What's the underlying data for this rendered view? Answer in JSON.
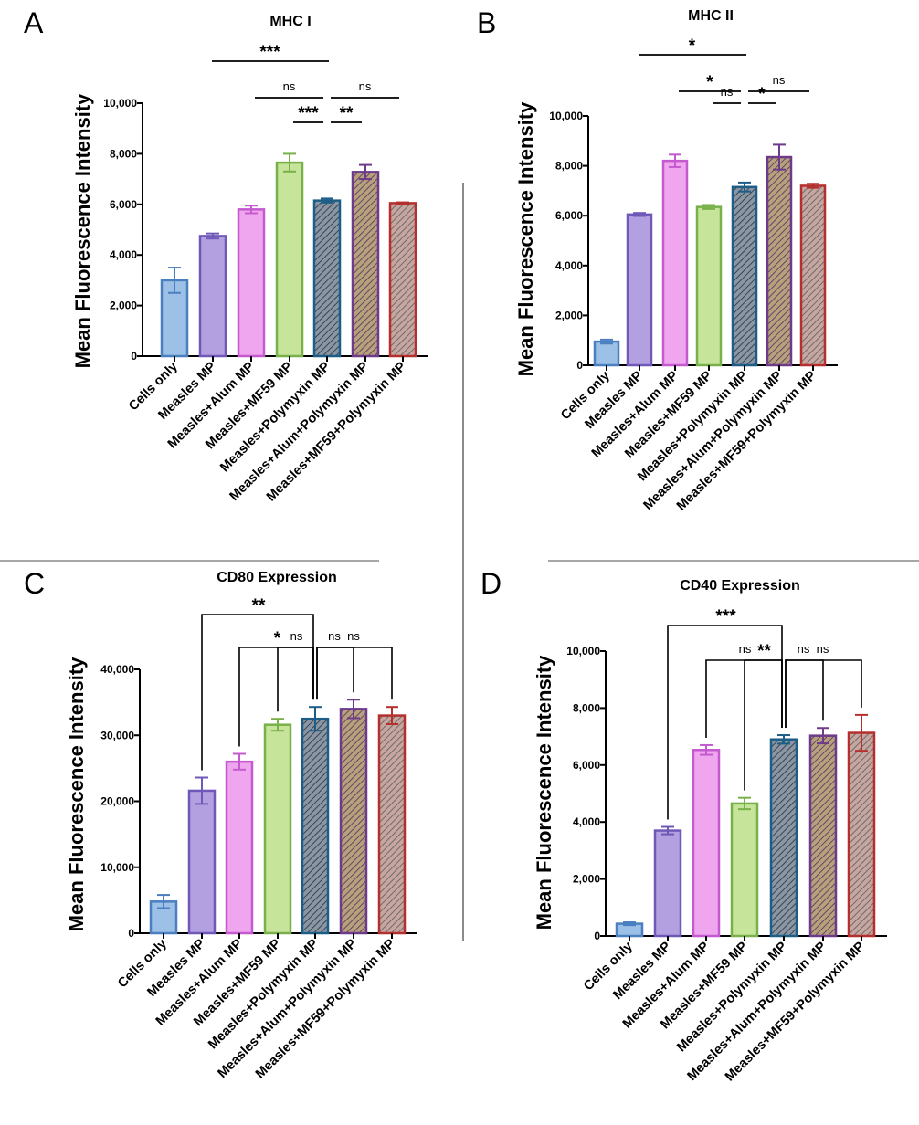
{
  "panel_letters": [
    "A",
    "B",
    "C",
    "D"
  ],
  "colors": {
    "fills": [
      "#9dc0e6",
      "#b3a0e0",
      "#f0a6ee",
      "#c6e49a",
      "#6d7480",
      "#9c7f6e",
      "#c09496"
    ],
    "edges": [
      "#4a7fc0",
      "#7058b8",
      "#c55ad0",
      "#78b04a",
      "#1c5e88",
      "#6e3a8a",
      "#b52f2f"
    ],
    "patterns": [
      "solid",
      "solid",
      "solid",
      "solid",
      "hatch",
      "hatch",
      "hatch"
    ]
  },
  "chart_data": [
    {
      "type": "bar",
      "title": "MHC I",
      "ylabel": "Mean Fluorescence Intensity",
      "categories": [
        "Cells only",
        "Measles MP",
        "Measles+Alum MP",
        "Measles+MF59 MP",
        "Measles+Polymyxin MP",
        "Measles+Alum+Polymyxin MP",
        "Measles+MF59+Polymyxin MP"
      ],
      "values": [
        3000,
        4750,
        5800,
        7650,
        6150,
        7280,
        6050
      ],
      "errors": [
        500,
        100,
        150,
        350,
        80,
        280,
        30
      ],
      "ylim": [
        0,
        10000
      ],
      "yticks": [
        "0",
        "2,000",
        "4,000",
        "6,000",
        "8,000",
        "10,000"
      ],
      "yticks_values": [
        0,
        2000,
        4000,
        6000,
        8000,
        10000
      ],
      "significance": [
        {
          "from": 1,
          "to": 4,
          "label": "***",
          "style": "line",
          "level": 0
        },
        {
          "from": 3,
          "to": 4,
          "label": "***",
          "style": "line",
          "level": 3
        },
        {
          "from": 2,
          "to": 4,
          "label": "ns",
          "style": "line",
          "level": 1
        },
        {
          "from": 4,
          "to": 6,
          "label": "ns",
          "style": "line",
          "level": 1
        },
        {
          "from": 4,
          "to": 5,
          "label": "**",
          "style": "line",
          "level": 3
        }
      ]
    },
    {
      "type": "bar",
      "title": "MHC II",
      "ylabel": "Mean Fluorescence Intensity",
      "categories": [
        "Cells only",
        "Measles MP",
        "Measles+Alum MP",
        "Measles+MF59 MP",
        "Measles+Polymyxin MP",
        "Measles+Alum+Polymyxin MP",
        "Measles+MF59+Polymyxin MP"
      ],
      "values": [
        950,
        6050,
        8200,
        6350,
        7150,
        8350,
        7200
      ],
      "errors": [
        80,
        60,
        250,
        80,
        180,
        500,
        80
      ],
      "ylim": [
        0,
        10000
      ],
      "yticks": [
        "0",
        "2,000",
        "4,000",
        "6,000",
        "8,000",
        "10,000"
      ],
      "yticks_values": [
        0,
        2000,
        4000,
        6000,
        8000,
        10000
      ],
      "significance": [
        {
          "from": 1,
          "to": 4,
          "label": "*",
          "style": "line",
          "level": 0
        },
        {
          "from": 2,
          "to": 4,
          "label": "*",
          "style": "line",
          "level": 1
        },
        {
          "from": 4,
          "to": 6,
          "label": "ns",
          "style": "line",
          "level": 1
        },
        {
          "from": 3,
          "to": 4,
          "label": "ns",
          "style": "line",
          "level": 2
        },
        {
          "from": 4,
          "to": 5,
          "label": "*",
          "style": "line",
          "level": 2
        }
      ]
    },
    {
      "type": "bar",
      "title": "CD80 Expression",
      "ylabel": "Mean Fluorescence Intensity",
      "categories": [
        "Cells only",
        "Measles MP",
        "Measles+Alum MP",
        "Measles+MF59 MP",
        "Measles+Polymyxin MP",
        "Measles+Alum+Polymyxin MP",
        "Measles+MF59+Polymyxin MP"
      ],
      "values": [
        4800,
        21600,
        26000,
        31600,
        32500,
        34000,
        33000
      ],
      "errors": [
        1000,
        2000,
        1200,
        900,
        1800,
        1400,
        1300
      ],
      "ylim": [
        0,
        40000
      ],
      "yticks": [
        "0",
        "10,000",
        "20,000",
        "30,000",
        "40,000"
      ],
      "yticks_values": [
        0,
        10000,
        20000,
        30000,
        40000
      ],
      "significance": [
        {
          "from": 1,
          "to": 4,
          "label": "**",
          "style": "bracket",
          "level": 0
        },
        {
          "from": 2,
          "to": 4,
          "label": "*",
          "style": "bracket",
          "level": 1
        },
        {
          "from": 4,
          "to": 6,
          "label": "ns",
          "style": "bracket",
          "level": 1
        },
        {
          "from": 3,
          "to": 4,
          "label": "ns",
          "style": "bracket",
          "level": 2
        },
        {
          "from": 4,
          "to": 5,
          "label": "ns",
          "style": "bracket",
          "level": 2
        }
      ]
    },
    {
      "type": "bar",
      "title": "CD40 Expression",
      "ylabel": "Mean Fluorescence Intensity",
      "categories": [
        "Cells only",
        "Measles MP",
        "Measles+Alum MP",
        "Measles+MF59 MP",
        "Measles+Polymyxin MP",
        "Measles+Alum+Polymyxin MP",
        "Measles+MF59+Polymyxin MP"
      ],
      "values": [
        430,
        3700,
        6530,
        4650,
        6900,
        7030,
        7130
      ],
      "errors": [
        50,
        130,
        170,
        200,
        150,
        270,
        630
      ],
      "ylim": [
        0,
        10000
      ],
      "yticks": [
        "0",
        "2,000",
        "4,000",
        "6,000",
        "8,000",
        "10,000"
      ],
      "yticks_values": [
        0,
        2000,
        4000,
        6000,
        8000,
        10000
      ],
      "significance": [
        {
          "from": 1,
          "to": 4,
          "label": "***",
          "style": "bracket",
          "level": 0
        },
        {
          "from": 2,
          "to": 4,
          "label": "ns",
          "style": "bracket",
          "level": 1
        },
        {
          "from": 4,
          "to": 6,
          "label": "ns",
          "style": "bracket",
          "level": 1
        },
        {
          "from": 3,
          "to": 4,
          "label": "**",
          "style": "bracket",
          "level": 2
        },
        {
          "from": 4,
          "to": 5,
          "label": "ns",
          "style": "bracket",
          "level": 2
        }
      ]
    }
  ]
}
